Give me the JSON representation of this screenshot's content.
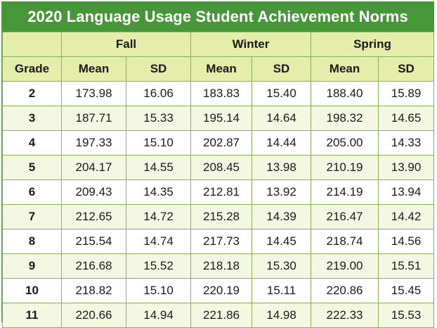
{
  "title": "2020 Language Usage Student Achievement Norms",
  "seasons": [
    "Fall",
    "Winter",
    "Spring"
  ],
  "columns": {
    "grade": "Grade",
    "mean": "Mean",
    "sd": "SD"
  },
  "rows": [
    {
      "grade": "2",
      "fall_mean": "173.98",
      "fall_sd": "16.06",
      "winter_mean": "183.83",
      "winter_sd": "15.40",
      "spring_mean": "188.40",
      "spring_sd": "15.89"
    },
    {
      "grade": "3",
      "fall_mean": "187.71",
      "fall_sd": "15.33",
      "winter_mean": "195.14",
      "winter_sd": "14.64",
      "spring_mean": "198.32",
      "spring_sd": "14.65"
    },
    {
      "grade": "4",
      "fall_mean": "197.33",
      "fall_sd": "15.10",
      "winter_mean": "202.87",
      "winter_sd": "14.44",
      "spring_mean": "205.00",
      "spring_sd": "14.33"
    },
    {
      "grade": "5",
      "fall_mean": "204.17",
      "fall_sd": "14.55",
      "winter_mean": "208.45",
      "winter_sd": "13.98",
      "spring_mean": "210.19",
      "spring_sd": "13.90"
    },
    {
      "grade": "6",
      "fall_mean": "209.43",
      "fall_sd": "14.35",
      "winter_mean": "212.81",
      "winter_sd": "13.92",
      "spring_mean": "214.19",
      "spring_sd": "13.94"
    },
    {
      "grade": "7",
      "fall_mean": "212.65",
      "fall_sd": "14.72",
      "winter_mean": "215.28",
      "winter_sd": "14.39",
      "spring_mean": "216.47",
      "spring_sd": "14.42"
    },
    {
      "grade": "8",
      "fall_mean": "215.54",
      "fall_sd": "14.74",
      "winter_mean": "217.73",
      "winter_sd": "14.45",
      "spring_mean": "218.74",
      "spring_sd": "14.56"
    },
    {
      "grade": "9",
      "fall_mean": "216.68",
      "fall_sd": "15.52",
      "winter_mean": "218.18",
      "winter_sd": "15.30",
      "spring_mean": "219.00",
      "spring_sd": "15.51"
    },
    {
      "grade": "10",
      "fall_mean": "218.82",
      "fall_sd": "15.10",
      "winter_mean": "220.19",
      "winter_sd": "15.11",
      "spring_mean": "220.86",
      "spring_sd": "15.45"
    },
    {
      "grade": "11",
      "fall_mean": "220.66",
      "fall_sd": "14.94",
      "winter_mean": "221.86",
      "winter_sd": "14.98",
      "spring_mean": "222.33",
      "spring_sd": "15.53"
    }
  ],
  "colors": {
    "title_bg": "#48963a",
    "header_bg": "#e4edaa",
    "stripe_bg": "#f4f8e2",
    "border": "#86b25a"
  }
}
